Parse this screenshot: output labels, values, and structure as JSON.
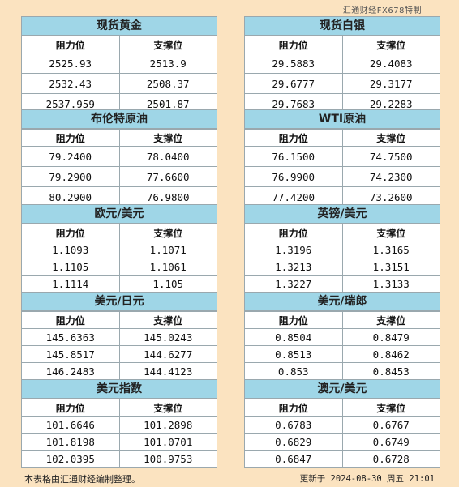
{
  "brand": "汇通财经FX678特制",
  "headers": {
    "resistance": "阻力位",
    "support": "支撑位"
  },
  "panels": [
    {
      "title": "现货黄金",
      "rows": [
        [
          "2525.93",
          "2513.9"
        ],
        [
          "2532.43",
          "2508.37"
        ],
        [
          "2537.959",
          "2501.87"
        ]
      ]
    },
    {
      "title": "现货白银",
      "rows": [
        [
          "29.5883",
          "29.4083"
        ],
        [
          "29.6777",
          "29.3177"
        ],
        [
          "29.7683",
          "29.2283"
        ]
      ]
    },
    {
      "title": "布伦特原油",
      "rows": [
        [
          "79.2400",
          "78.0400"
        ],
        [
          "79.2900",
          "77.6600"
        ],
        [
          "80.2900",
          "76.9800"
        ]
      ]
    },
    {
      "title": "WTI原油",
      "rows": [
        [
          "76.1500",
          "74.7500"
        ],
        [
          "76.9900",
          "74.2300"
        ],
        [
          "77.4200",
          "73.2600"
        ]
      ]
    },
    {
      "title": "欧元/美元",
      "rows": [
        [
          "1.1093",
          "1.1071"
        ],
        [
          "1.1105",
          "1.1061"
        ],
        [
          "1.1114",
          "1.105"
        ]
      ]
    },
    {
      "title": "英镑/美元",
      "rows": [
        [
          "1.3196",
          "1.3165"
        ],
        [
          "1.3213",
          "1.3151"
        ],
        [
          "1.3227",
          "1.3133"
        ]
      ]
    },
    {
      "title": "美元/日元",
      "rows": [
        [
          "145.6363",
          "145.0243"
        ],
        [
          "145.8517",
          "144.6277"
        ],
        [
          "146.2483",
          "144.4123"
        ]
      ]
    },
    {
      "title": "美元/瑞郎",
      "rows": [
        [
          "0.8504",
          "0.8479"
        ],
        [
          "0.8513",
          "0.8462"
        ],
        [
          "0.853",
          "0.8453"
        ]
      ]
    },
    {
      "title": "美元指数",
      "rows": [
        [
          "101.6646",
          "101.2898"
        ],
        [
          "101.8198",
          "101.0701"
        ],
        [
          "102.0395",
          "100.9753"
        ]
      ]
    },
    {
      "title": "澳元/美元",
      "rows": [
        [
          "0.6783",
          "0.6767"
        ],
        [
          "0.6829",
          "0.6749"
        ],
        [
          "0.6847",
          "0.6728"
        ]
      ]
    }
  ],
  "footer": {
    "note": "本表格由汇通财经编制整理。",
    "updated": "更新于 2024-08-30 周五 21:01"
  }
}
